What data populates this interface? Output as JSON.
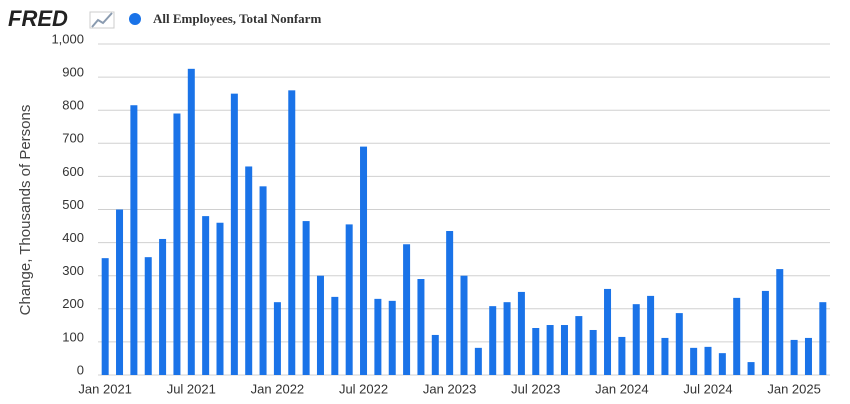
{
  "chart_data": {
    "type": "bar",
    "logo": "FRED",
    "y_label": "Change, Thousands of Persons",
    "categories": [
      "Jan 2021",
      null,
      null,
      null,
      null,
      null,
      "Jul 2021",
      null,
      null,
      null,
      null,
      null,
      "Jan 2022",
      null,
      null,
      null,
      null,
      null,
      "Jul 2022",
      null,
      null,
      null,
      null,
      null,
      "Jan 2023",
      null,
      null,
      null,
      null,
      null,
      "Jul 2023",
      null,
      null,
      null,
      null,
      null,
      "Jan 2024",
      null,
      null,
      null,
      null,
      null,
      "Jul 2024",
      null,
      null,
      null,
      null,
      null,
      "Jan 2025",
      null,
      null
    ],
    "series": [
      {
        "name": "All Employees, Total Nonfarm",
        "color": "#1a73e8",
        "values": [
          353,
          500,
          815,
          356,
          411,
          790,
          925,
          480,
          460,
          850,
          630,
          570,
          220,
          860,
          465,
          300,
          236,
          455,
          690,
          230,
          224,
          395,
          290,
          121,
          435,
          300,
          82,
          208,
          220,
          251,
          142,
          151,
          151,
          178,
          136,
          260,
          115,
          214,
          239,
          112,
          187,
          82,
          85,
          66,
          233,
          39,
          254,
          320,
          106,
          112,
          220
        ]
      }
    ],
    "ylim": [
      0,
      1000
    ],
    "yticks": [
      0,
      100,
      200,
      300,
      400,
      500,
      600,
      700,
      800,
      900,
      {
        "value": 1000,
        "label": "1,000"
      }
    ],
    "grid": true
  }
}
